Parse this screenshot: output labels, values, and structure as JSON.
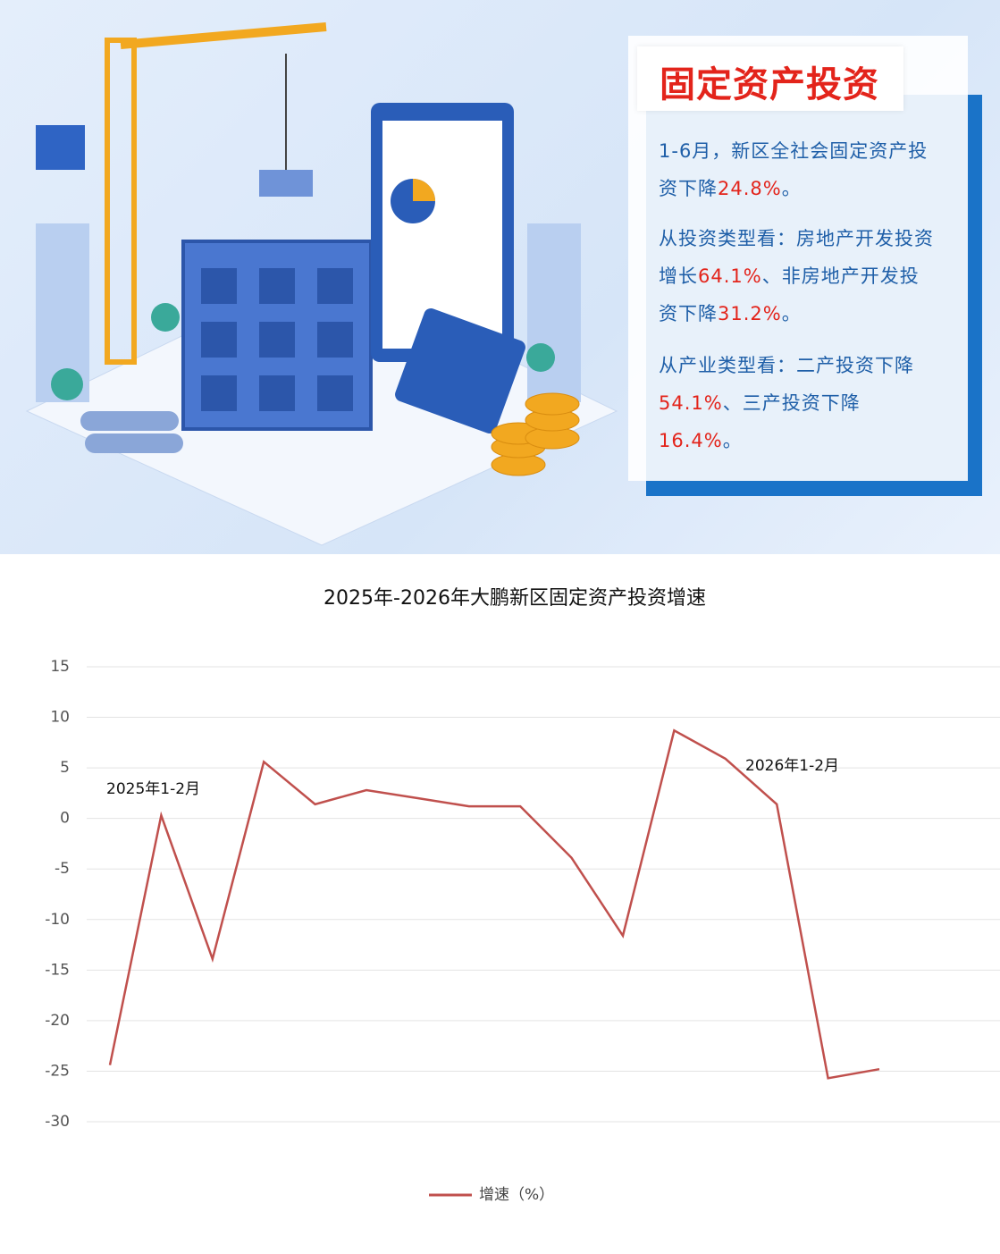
{
  "header": {
    "title": "固定资产投资",
    "paragraphs": [
      [
        {
          "text": "1-6月，新区全社会固定资产投资下降",
          "color": "#1f5fa8"
        },
        {
          "text": "24.8%",
          "color": "#e3241b"
        },
        {
          "text": "。",
          "color": "#1f5fa8"
        }
      ],
      [
        {
          "text": "从投资类型看：房地产开发投资增长",
          "color": "#1f5fa8"
        },
        {
          "text": "64.1%",
          "color": "#e3241b"
        },
        {
          "text": "、非房地产开发投资下降",
          "color": "#1f5fa8"
        },
        {
          "text": "31.2%",
          "color": "#e3241b"
        },
        {
          "text": "。",
          "color": "#1f5fa8"
        }
      ],
      [
        {
          "text": "从产业类型看：二产投资下降",
          "color": "#1f5fa8"
        },
        {
          "text": "54.1%",
          "color": "#e3241b"
        },
        {
          "text": "、三产投资下降",
          "color": "#1f5fa8"
        },
        {
          "text": "16.4%",
          "color": "#e3241b"
        },
        {
          "text": "。",
          "color": "#1f5fa8"
        }
      ]
    ]
  },
  "chart_data": {
    "type": "line",
    "title": "2025年-2026年大鹏新区固定资产投资增速",
    "categories": [
      null,
      null,
      null,
      null,
      null,
      null,
      null,
      null,
      null,
      null,
      null,
      null,
      null,
      null,
      null,
      null
    ],
    "series": [
      {
        "name": "增速（%）",
        "color": "#c0504d",
        "values": [
          -24.4,
          0.3,
          -13.9,
          5.6,
          1.4,
          2.8,
          2.0,
          1.2,
          1.2,
          -3.9,
          -11.6,
          8.7,
          5.9,
          1.4,
          -25.7,
          -24.8
        ]
      }
    ],
    "annotations": [
      "2025年1-2月",
      "2026年1-2月"
    ],
    "ylim": [
      -30,
      15
    ],
    "yticks": [
      -30,
      -25,
      -20,
      -15,
      -10,
      -5,
      0,
      5,
      10,
      15
    ],
    "grid": true,
    "legend": "bottom"
  }
}
